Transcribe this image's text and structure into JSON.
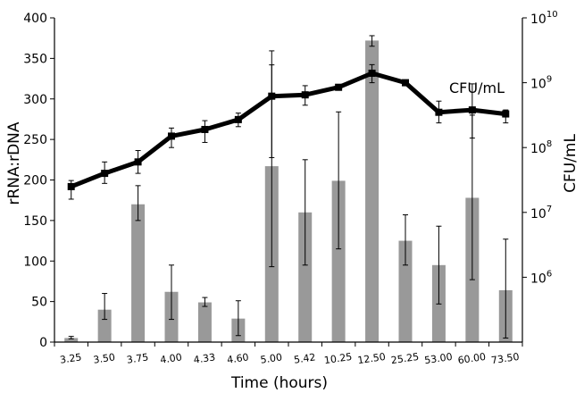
{
  "chart_data": {
    "type": "bar+line",
    "title": "",
    "categories": [
      "3.25",
      "3.50",
      "3.75",
      "4.00",
      "4.33",
      "4.60",
      "5.00",
      "5.42",
      "10.25",
      "12.50",
      "25.25",
      "53.00",
      "60.00",
      "73.50"
    ],
    "xlabel": "Time (hours)",
    "ylabel_left": "rRNA:rDNA",
    "ylabel_right": "CFU/mL",
    "left_axis": {
      "ylim": [
        0,
        400
      ],
      "ticks": [
        "0",
        "50",
        "100",
        "150",
        "200",
        "250",
        "300",
        "350",
        "400"
      ]
    },
    "right_axis": {
      "scale": "log",
      "ylim": [
        100000,
        10000000000
      ],
      "ticks": [
        {
          "base": "10",
          "exp": "6",
          "value": 1000000
        },
        {
          "base": "10",
          "exp": "7",
          "value": 10000000
        },
        {
          "base": "10",
          "exp": "8",
          "value": 100000000
        },
        {
          "base": "10",
          "exp": "9",
          "value": 1000000000
        },
        {
          "base": "10",
          "exp": "10",
          "value": 10000000000
        }
      ]
    },
    "bars": {
      "axis": "left",
      "color": "#999999",
      "values": [
        5,
        40,
        170,
        62,
        49,
        29,
        217,
        160,
        199,
        372,
        125,
        95,
        178,
        64
      ],
      "err_low": [
        4,
        28,
        150,
        28,
        44,
        8,
        93,
        95,
        115,
        365,
        95,
        47,
        77,
        5
      ],
      "err_high": [
        7,
        60,
        193,
        95,
        55,
        51,
        342,
        225,
        284,
        378,
        157,
        143,
        280,
        127
      ]
    },
    "line": {
      "name": "CFU/mL",
      "axis": "right",
      "color": "#000000",
      "values": [
        25000000,
        40000000,
        60000000,
        150000000,
        190000000,
        270000000,
        620000000,
        650000000,
        850000000,
        1400000000,
        1000000000,
        350000000,
        380000000,
        330000000
      ],
      "err_low": [
        16000000,
        28000000,
        40000000,
        100000000,
        120000000,
        210000000,
        70000000,
        450000000,
        780000000,
        1000000000,
        950000000,
        240000000,
        140000000,
        240000000
      ],
      "err_high": [
        31000000,
        60000000,
        90000000,
        200000000,
        260000000,
        340000000,
        3100000000,
        900000000,
        930000000,
        1900000000,
        1050000000,
        520000000,
        960000000,
        380000000
      ]
    },
    "annotation": "CFU/mL",
    "grid": false,
    "legend": "none"
  }
}
